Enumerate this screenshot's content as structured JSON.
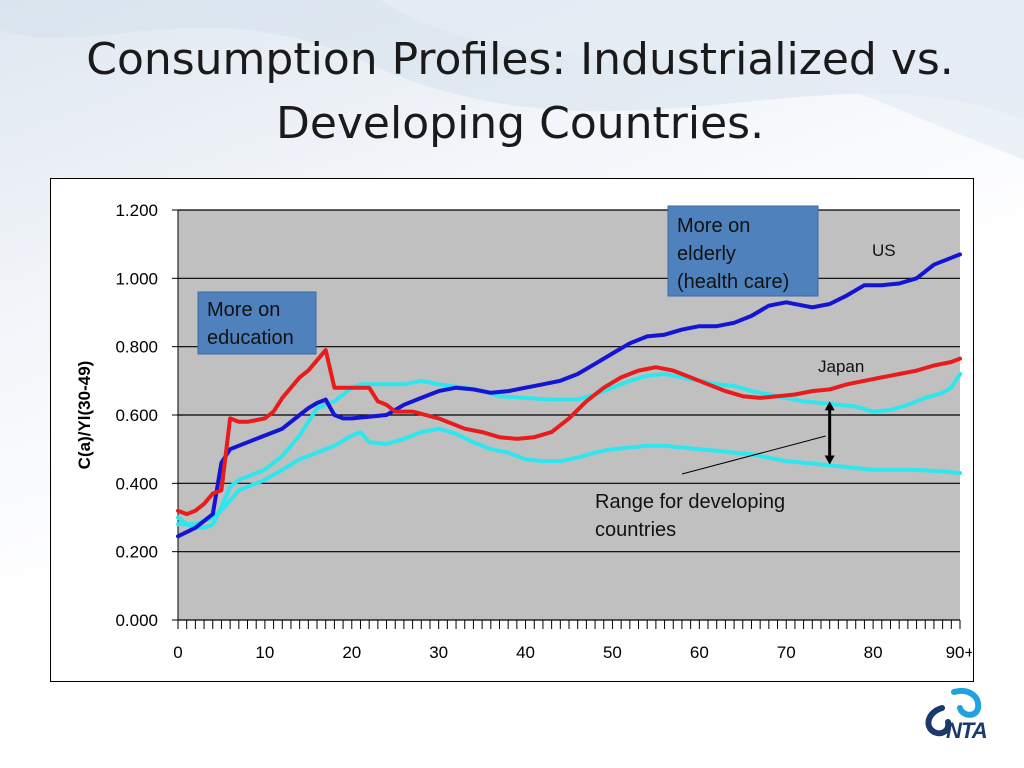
{
  "title_lines": [
    "Consumption Profiles: Industrialized vs.",
    "Developing Countries."
  ],
  "logo_text": "NTA",
  "colors": {
    "us": "#1414d6",
    "japan": "#e81c1c",
    "developing": "#2ee6ee",
    "plot_bg": "#c0c0c0",
    "annotation_box": "#4f81bd"
  },
  "chart_data": {
    "type": "line",
    "title": "",
    "xlabel": "",
    "ylabel": "C(a)/Yl(30-49)",
    "ylim": [
      0,
      1.2
    ],
    "xlim": [
      0,
      90
    ],
    "y_ticks": [
      "0.000",
      "0.200",
      "0.400",
      "0.600",
      "0.800",
      "1.000",
      "1.200"
    ],
    "y_tick_values": [
      0,
      0.2,
      0.4,
      0.6,
      0.8,
      1.0,
      1.2
    ],
    "x_ticks": [
      "0",
      "10",
      "20",
      "30",
      "40",
      "50",
      "60",
      "70",
      "80",
      "90+"
    ],
    "x_tick_values": [
      0,
      10,
      20,
      30,
      40,
      50,
      60,
      70,
      80,
      90
    ],
    "grid": true,
    "series": [
      {
        "name": "US",
        "color_key": "us",
        "points": [
          [
            0,
            0.245
          ],
          [
            2,
            0.27
          ],
          [
            4,
            0.31
          ],
          [
            5,
            0.46
          ],
          [
            6,
            0.5
          ],
          [
            8,
            0.52
          ],
          [
            10,
            0.54
          ],
          [
            12,
            0.56
          ],
          [
            14,
            0.6
          ],
          [
            15,
            0.62
          ],
          [
            16,
            0.635
          ],
          [
            17,
            0.645
          ],
          [
            18,
            0.6
          ],
          [
            19,
            0.59
          ],
          [
            20,
            0.59
          ],
          [
            22,
            0.595
          ],
          [
            24,
            0.6
          ],
          [
            26,
            0.63
          ],
          [
            28,
            0.65
          ],
          [
            30,
            0.67
          ],
          [
            32,
            0.68
          ],
          [
            34,
            0.675
          ],
          [
            36,
            0.665
          ],
          [
            38,
            0.67
          ],
          [
            40,
            0.68
          ],
          [
            42,
            0.69
          ],
          [
            44,
            0.7
          ],
          [
            46,
            0.72
          ],
          [
            48,
            0.75
          ],
          [
            50,
            0.78
          ],
          [
            52,
            0.81
          ],
          [
            54,
            0.83
          ],
          [
            56,
            0.835
          ],
          [
            58,
            0.85
          ],
          [
            60,
            0.86
          ],
          [
            62,
            0.86
          ],
          [
            64,
            0.87
          ],
          [
            66,
            0.89
          ],
          [
            68,
            0.92
          ],
          [
            70,
            0.93
          ],
          [
            72,
            0.92
          ],
          [
            73,
            0.915
          ],
          [
            75,
            0.925
          ],
          [
            77,
            0.95
          ],
          [
            79,
            0.98
          ],
          [
            81,
            0.98
          ],
          [
            83,
            0.985
          ],
          [
            85,
            1.0
          ],
          [
            87,
            1.04
          ],
          [
            89,
            1.06
          ],
          [
            90,
            1.07
          ]
        ]
      },
      {
        "name": "Japan",
        "color_key": "japan",
        "points": [
          [
            0,
            0.32
          ],
          [
            1,
            0.31
          ],
          [
            2,
            0.32
          ],
          [
            3,
            0.34
          ],
          [
            4,
            0.37
          ],
          [
            5,
            0.38
          ],
          [
            6,
            0.59
          ],
          [
            7,
            0.58
          ],
          [
            8,
            0.58
          ],
          [
            10,
            0.59
          ],
          [
            11,
            0.61
          ],
          [
            12,
            0.65
          ],
          [
            14,
            0.71
          ],
          [
            15,
            0.73
          ],
          [
            16,
            0.76
          ],
          [
            17,
            0.79
          ],
          [
            18,
            0.68
          ],
          [
            20,
            0.68
          ],
          [
            21,
            0.68
          ],
          [
            22,
            0.68
          ],
          [
            23,
            0.64
          ],
          [
            24,
            0.63
          ],
          [
            25,
            0.61
          ],
          [
            27,
            0.61
          ],
          [
            30,
            0.59
          ],
          [
            33,
            0.56
          ],
          [
            35,
            0.55
          ],
          [
            37,
            0.535
          ],
          [
            39,
            0.53
          ],
          [
            41,
            0.535
          ],
          [
            43,
            0.55
          ],
          [
            45,
            0.59
          ],
          [
            47,
            0.64
          ],
          [
            49,
            0.68
          ],
          [
            51,
            0.71
          ],
          [
            53,
            0.73
          ],
          [
            55,
            0.74
          ],
          [
            57,
            0.73
          ],
          [
            59,
            0.71
          ],
          [
            61,
            0.69
          ],
          [
            63,
            0.67
          ],
          [
            65,
            0.655
          ],
          [
            67,
            0.65
          ],
          [
            69,
            0.655
          ],
          [
            71,
            0.66
          ],
          [
            73,
            0.67
          ],
          [
            75,
            0.675
          ],
          [
            77,
            0.69
          ],
          [
            79,
            0.7
          ],
          [
            81,
            0.71
          ],
          [
            83,
            0.72
          ],
          [
            85,
            0.73
          ],
          [
            87,
            0.745
          ],
          [
            89,
            0.755
          ],
          [
            90,
            0.765
          ]
        ]
      },
      {
        "name": "Developing (upper)",
        "color_key": "developing",
        "points": [
          [
            0,
            0.3
          ],
          [
            1,
            0.28
          ],
          [
            2,
            0.27
          ],
          [
            3,
            0.27
          ],
          [
            4,
            0.28
          ],
          [
            5,
            0.33
          ],
          [
            6,
            0.39
          ],
          [
            7,
            0.41
          ],
          [
            8,
            0.42
          ],
          [
            10,
            0.44
          ],
          [
            12,
            0.48
          ],
          [
            14,
            0.54
          ],
          [
            15,
            0.58
          ],
          [
            16,
            0.62
          ],
          [
            18,
            0.64
          ],
          [
            20,
            0.68
          ],
          [
            21,
            0.69
          ],
          [
            22,
            0.69
          ],
          [
            24,
            0.69
          ],
          [
            26,
            0.69
          ],
          [
            28,
            0.7
          ],
          [
            30,
            0.69
          ],
          [
            33,
            0.68
          ],
          [
            35,
            0.67
          ],
          [
            37,
            0.655
          ],
          [
            40,
            0.65
          ],
          [
            43,
            0.645
          ],
          [
            46,
            0.645
          ],
          [
            48,
            0.66
          ],
          [
            50,
            0.68
          ],
          [
            52,
            0.7
          ],
          [
            54,
            0.715
          ],
          [
            56,
            0.72
          ],
          [
            58,
            0.71
          ],
          [
            60,
            0.7
          ],
          [
            62,
            0.69
          ],
          [
            64,
            0.685
          ],
          [
            66,
            0.67
          ],
          [
            68,
            0.66
          ],
          [
            70,
            0.65
          ],
          [
            72,
            0.64
          ],
          [
            74,
            0.635
          ],
          [
            76,
            0.63
          ],
          [
            78,
            0.625
          ],
          [
            80,
            0.61
          ],
          [
            82,
            0.615
          ],
          [
            84,
            0.63
          ],
          [
            86,
            0.65
          ],
          [
            88,
            0.665
          ],
          [
            89,
            0.68
          ],
          [
            90,
            0.72
          ]
        ]
      },
      {
        "name": "Developing (lower)",
        "color_key": "developing",
        "points": [
          [
            0,
            0.28
          ],
          [
            2,
            0.28
          ],
          [
            4,
            0.3
          ],
          [
            5,
            0.32
          ],
          [
            6,
            0.35
          ],
          [
            7,
            0.38
          ],
          [
            8,
            0.39
          ],
          [
            10,
            0.41
          ],
          [
            12,
            0.44
          ],
          [
            14,
            0.47
          ],
          [
            16,
            0.49
          ],
          [
            18,
            0.51
          ],
          [
            20,
            0.54
          ],
          [
            21,
            0.55
          ],
          [
            22,
            0.52
          ],
          [
            24,
            0.515
          ],
          [
            26,
            0.53
          ],
          [
            28,
            0.55
          ],
          [
            30,
            0.56
          ],
          [
            32,
            0.545
          ],
          [
            34,
            0.52
          ],
          [
            36,
            0.5
          ],
          [
            38,
            0.49
          ],
          [
            40,
            0.47
          ],
          [
            42,
            0.465
          ],
          [
            44,
            0.465
          ],
          [
            46,
            0.475
          ],
          [
            48,
            0.49
          ],
          [
            50,
            0.5
          ],
          [
            52,
            0.505
          ],
          [
            54,
            0.51
          ],
          [
            56,
            0.51
          ],
          [
            58,
            0.505
          ],
          [
            60,
            0.5
          ],
          [
            62,
            0.495
          ],
          [
            64,
            0.49
          ],
          [
            66,
            0.485
          ],
          [
            68,
            0.475
          ],
          [
            70,
            0.465
          ],
          [
            72,
            0.46
          ],
          [
            74,
            0.455
          ],
          [
            76,
            0.45
          ],
          [
            78,
            0.445
          ],
          [
            80,
            0.44
          ],
          [
            82,
            0.44
          ],
          [
            84,
            0.44
          ],
          [
            86,
            0.438
          ],
          [
            88,
            0.435
          ],
          [
            90,
            0.43
          ]
        ]
      }
    ],
    "annotations": [
      {
        "id": "education",
        "lines": [
          "More on",
          "education"
        ],
        "boxed": true
      },
      {
        "id": "elderly",
        "lines": [
          "More on",
          "elderly",
          "(health care)"
        ],
        "boxed": true
      },
      {
        "id": "us_label",
        "lines": [
          "US"
        ],
        "boxed": false
      },
      {
        "id": "japan_label",
        "lines": [
          "Japan"
        ],
        "boxed": false
      },
      {
        "id": "range",
        "lines": [
          "Range for developing",
          "countries"
        ],
        "boxed": false
      }
    ],
    "range_arrow": {
      "x": 75,
      "y_low": 0.455,
      "y_high": 0.64
    }
  }
}
